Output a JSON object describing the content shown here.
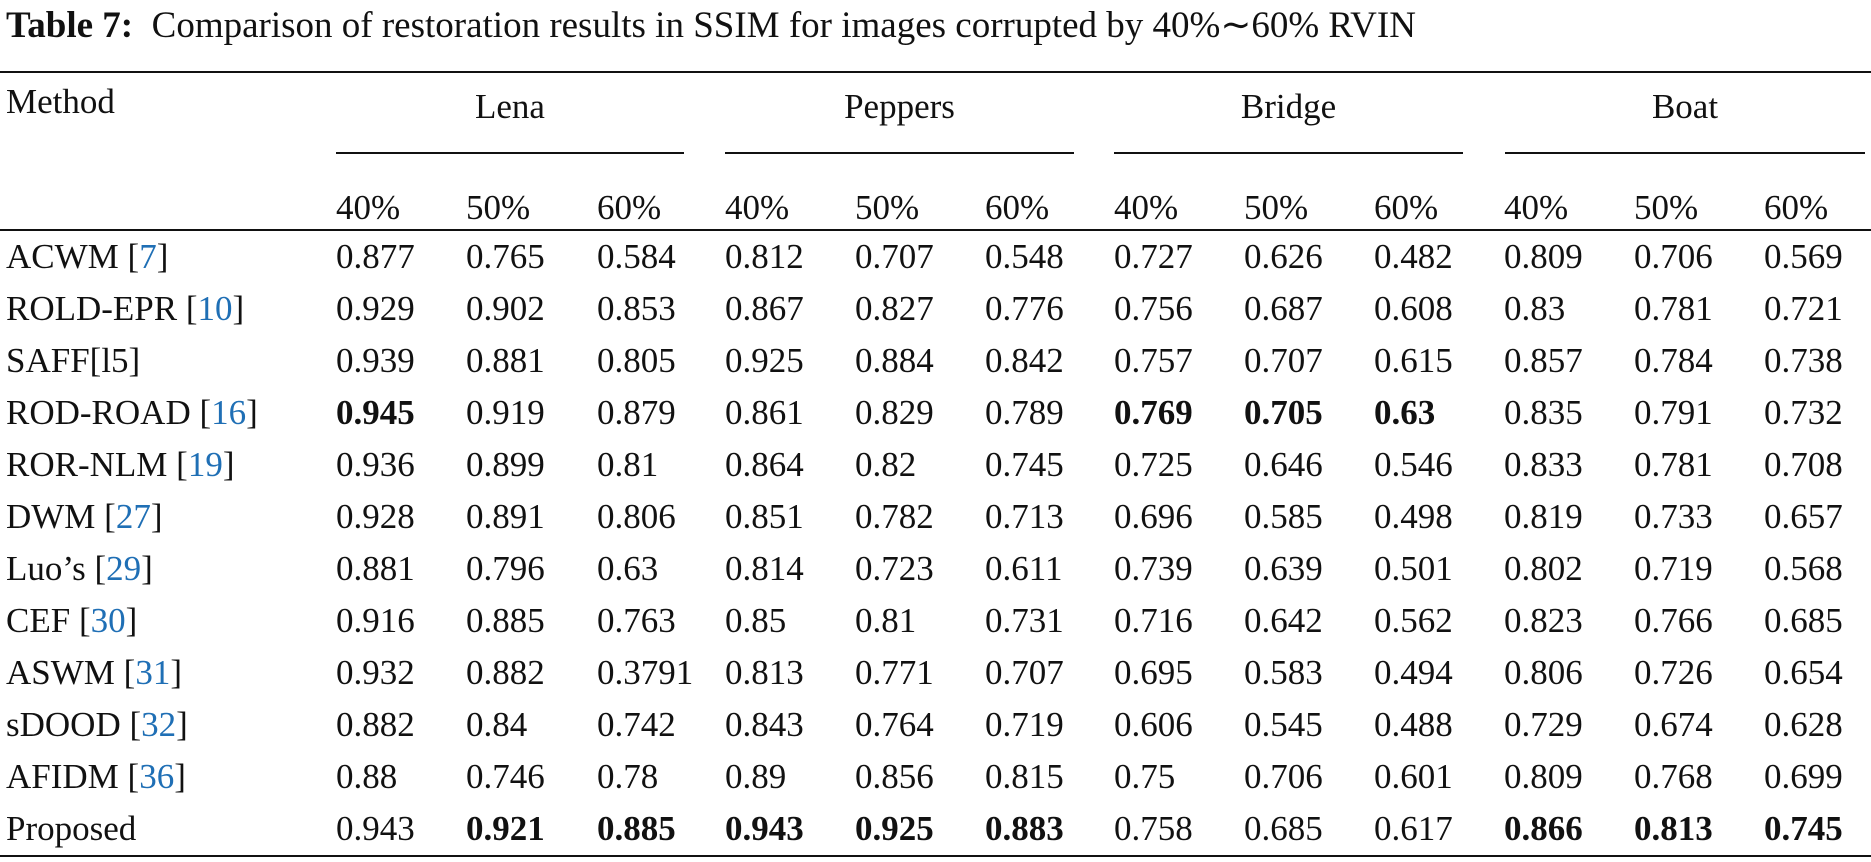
{
  "title": {
    "label": "Table 7:",
    "text": "Comparison of restoration results in SSIM for images corrupted by 40%∼60% RVIN"
  },
  "table": {
    "method_header": "Method",
    "groups": [
      {
        "name": "Lena",
        "levels": [
          "40%",
          "50%",
          "60%"
        ]
      },
      {
        "name": "Peppers",
        "levels": [
          "40%",
          "50%",
          "60%"
        ]
      },
      {
        "name": "Bridge",
        "levels": [
          "40%",
          "50%",
          "60%"
        ]
      },
      {
        "name": "Boat",
        "levels": [
          "40%",
          "50%",
          "60%"
        ]
      }
    ],
    "rows": [
      {
        "method": [
          "ACWM [",
          "7",
          "]"
        ],
        "values": [
          "0.877",
          "0.765",
          "0.584",
          "0.812",
          "0.707",
          "0.548",
          "0.727",
          "0.626",
          "0.482",
          "0.809",
          "0.706",
          "0.569"
        ],
        "bold": []
      },
      {
        "method": [
          "ROLD-EPR [",
          "10",
          "]"
        ],
        "values": [
          "0.929",
          "0.902",
          "0.853",
          "0.867",
          "0.827",
          "0.776",
          "0.756",
          "0.687",
          "0.608",
          "0.83",
          "0.781",
          "0.721"
        ],
        "bold": []
      },
      {
        "method": [
          "SAFF[l5]"
        ],
        "values": [
          "0.939",
          "0.881",
          "0.805",
          "0.925",
          "0.884",
          "0.842",
          "0.757",
          "0.707",
          "0.615",
          "0.857",
          "0.784",
          "0.738"
        ],
        "bold": []
      },
      {
        "method": [
          "ROD-ROAD [",
          "16",
          "]"
        ],
        "values": [
          "0.945",
          "0.919",
          "0.879",
          "0.861",
          "0.829",
          "0.789",
          "0.769",
          "0.705",
          "0.63",
          "0.835",
          "0.791",
          "0.732"
        ],
        "bold": [
          0,
          6,
          7,
          8
        ]
      },
      {
        "method": [
          "ROR-NLM [",
          "19",
          "]"
        ],
        "values": [
          "0.936",
          "0.899",
          "0.81",
          "0.864",
          "0.82",
          "0.745",
          "0.725",
          "0.646",
          "0.546",
          "0.833",
          "0.781",
          "0.708"
        ],
        "bold": []
      },
      {
        "method": [
          "DWM [",
          "27",
          "]"
        ],
        "values": [
          "0.928",
          "0.891",
          "0.806",
          "0.851",
          "0.782",
          "0.713",
          "0.696",
          "0.585",
          "0.498",
          "0.819",
          "0.733",
          "0.657"
        ],
        "bold": []
      },
      {
        "method": [
          "Luo’s [",
          "29",
          "]"
        ],
        "values": [
          "0.881",
          "0.796",
          "0.63",
          "0.814",
          "0.723",
          "0.611",
          "0.739",
          "0.639",
          "0.501",
          "0.802",
          "0.719",
          "0.568"
        ],
        "bold": []
      },
      {
        "method": [
          "CEF [",
          "30",
          "]"
        ],
        "values": [
          "0.916",
          "0.885",
          "0.763",
          "0.85",
          "0.81",
          "0.731",
          "0.716",
          "0.642",
          "0.562",
          "0.823",
          "0.766",
          "0.685"
        ],
        "bold": []
      },
      {
        "method": [
          "ASWM [",
          "31",
          "]"
        ],
        "values": [
          "0.932",
          "0.882",
          "0.3791",
          "0.813",
          "0.771",
          "0.707",
          "0.695",
          "0.583",
          "0.494",
          "0.806",
          "0.726",
          "0.654"
        ],
        "bold": []
      },
      {
        "method": [
          "sDOOD [",
          "32",
          "]"
        ],
        "values": [
          "0.882",
          "0.84",
          "0.742",
          "0.843",
          "0.764",
          "0.719",
          "0.606",
          "0.545",
          "0.488",
          "0.729",
          "0.674",
          "0.628"
        ],
        "bold": []
      },
      {
        "method": [
          "AFIDM [",
          "36",
          "]"
        ],
        "values": [
          "0.88",
          "0.746",
          "0.78",
          "0.89",
          "0.856",
          "0.815",
          "0.75",
          "0.706",
          "0.601",
          "0.809",
          "0.768",
          "0.699"
        ],
        "bold": []
      },
      {
        "method": [
          "Proposed"
        ],
        "values": [
          "0.943",
          "0.921",
          "0.885",
          "0.943",
          "0.925",
          "0.883",
          "0.758",
          "0.685",
          "0.617",
          "0.866",
          "0.813",
          "0.745"
        ],
        "bold": [
          1,
          2,
          3,
          4,
          5,
          9,
          10,
          11
        ]
      }
    ]
  }
}
